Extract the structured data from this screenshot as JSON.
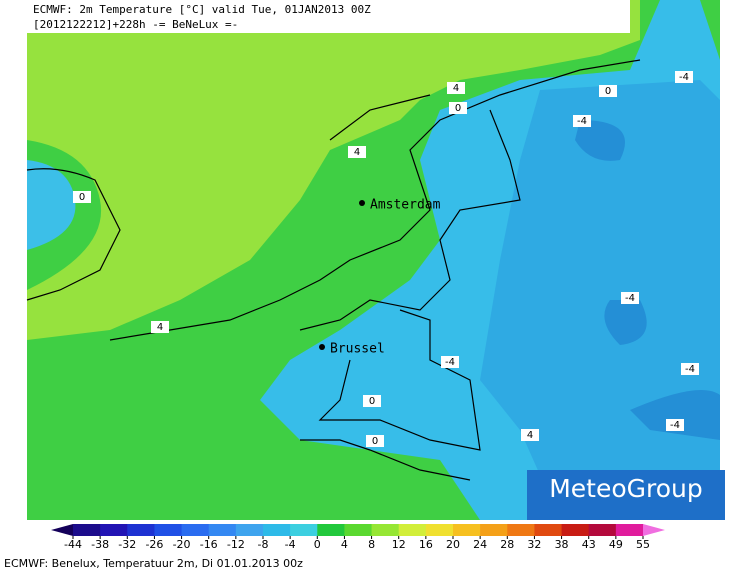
{
  "header": {
    "line1": "ECMWF: 2m Temperature [°C] valid Tue, 01JAN2013 00Z",
    "line2": "[2012122212]+228h -= BeNeLux =-"
  },
  "cities": [
    "Amsterdam",
    "Brussel"
  ],
  "contour_labels": [
    "4",
    "0",
    "0",
    "-4",
    "-4",
    "-4",
    "-4",
    "-4",
    "4",
    "4",
    "0",
    "4",
    "0",
    "0",
    "-4"
  ],
  "logo": "MeteoGroup",
  "colorbar": {
    "ticks": [
      -44,
      -38,
      -32,
      -26,
      -20,
      -16,
      -12,
      -8,
      -4,
      0,
      4,
      8,
      12,
      16,
      20,
      24,
      28,
      32,
      38,
      43,
      49,
      55
    ],
    "colors": [
      "#14005a",
      "#1c0c8c",
      "#2214b4",
      "#1e32d2",
      "#2050e6",
      "#2a6cf0",
      "#3488f2",
      "#3ea4ee",
      "#2ebae8",
      "#3ccfe0",
      "#22c83c",
      "#5ad830",
      "#96e634",
      "#d2ee3a",
      "#f0e030",
      "#f6c020",
      "#f4a018",
      "#ef7814",
      "#e04a10",
      "#c81c14",
      "#b40a3c",
      "#e01c9c",
      "#f06ee0"
    ]
  },
  "caption": "ECMWF: Benelux, Temperatuur 2m, Di 01.01.2013 00z"
}
